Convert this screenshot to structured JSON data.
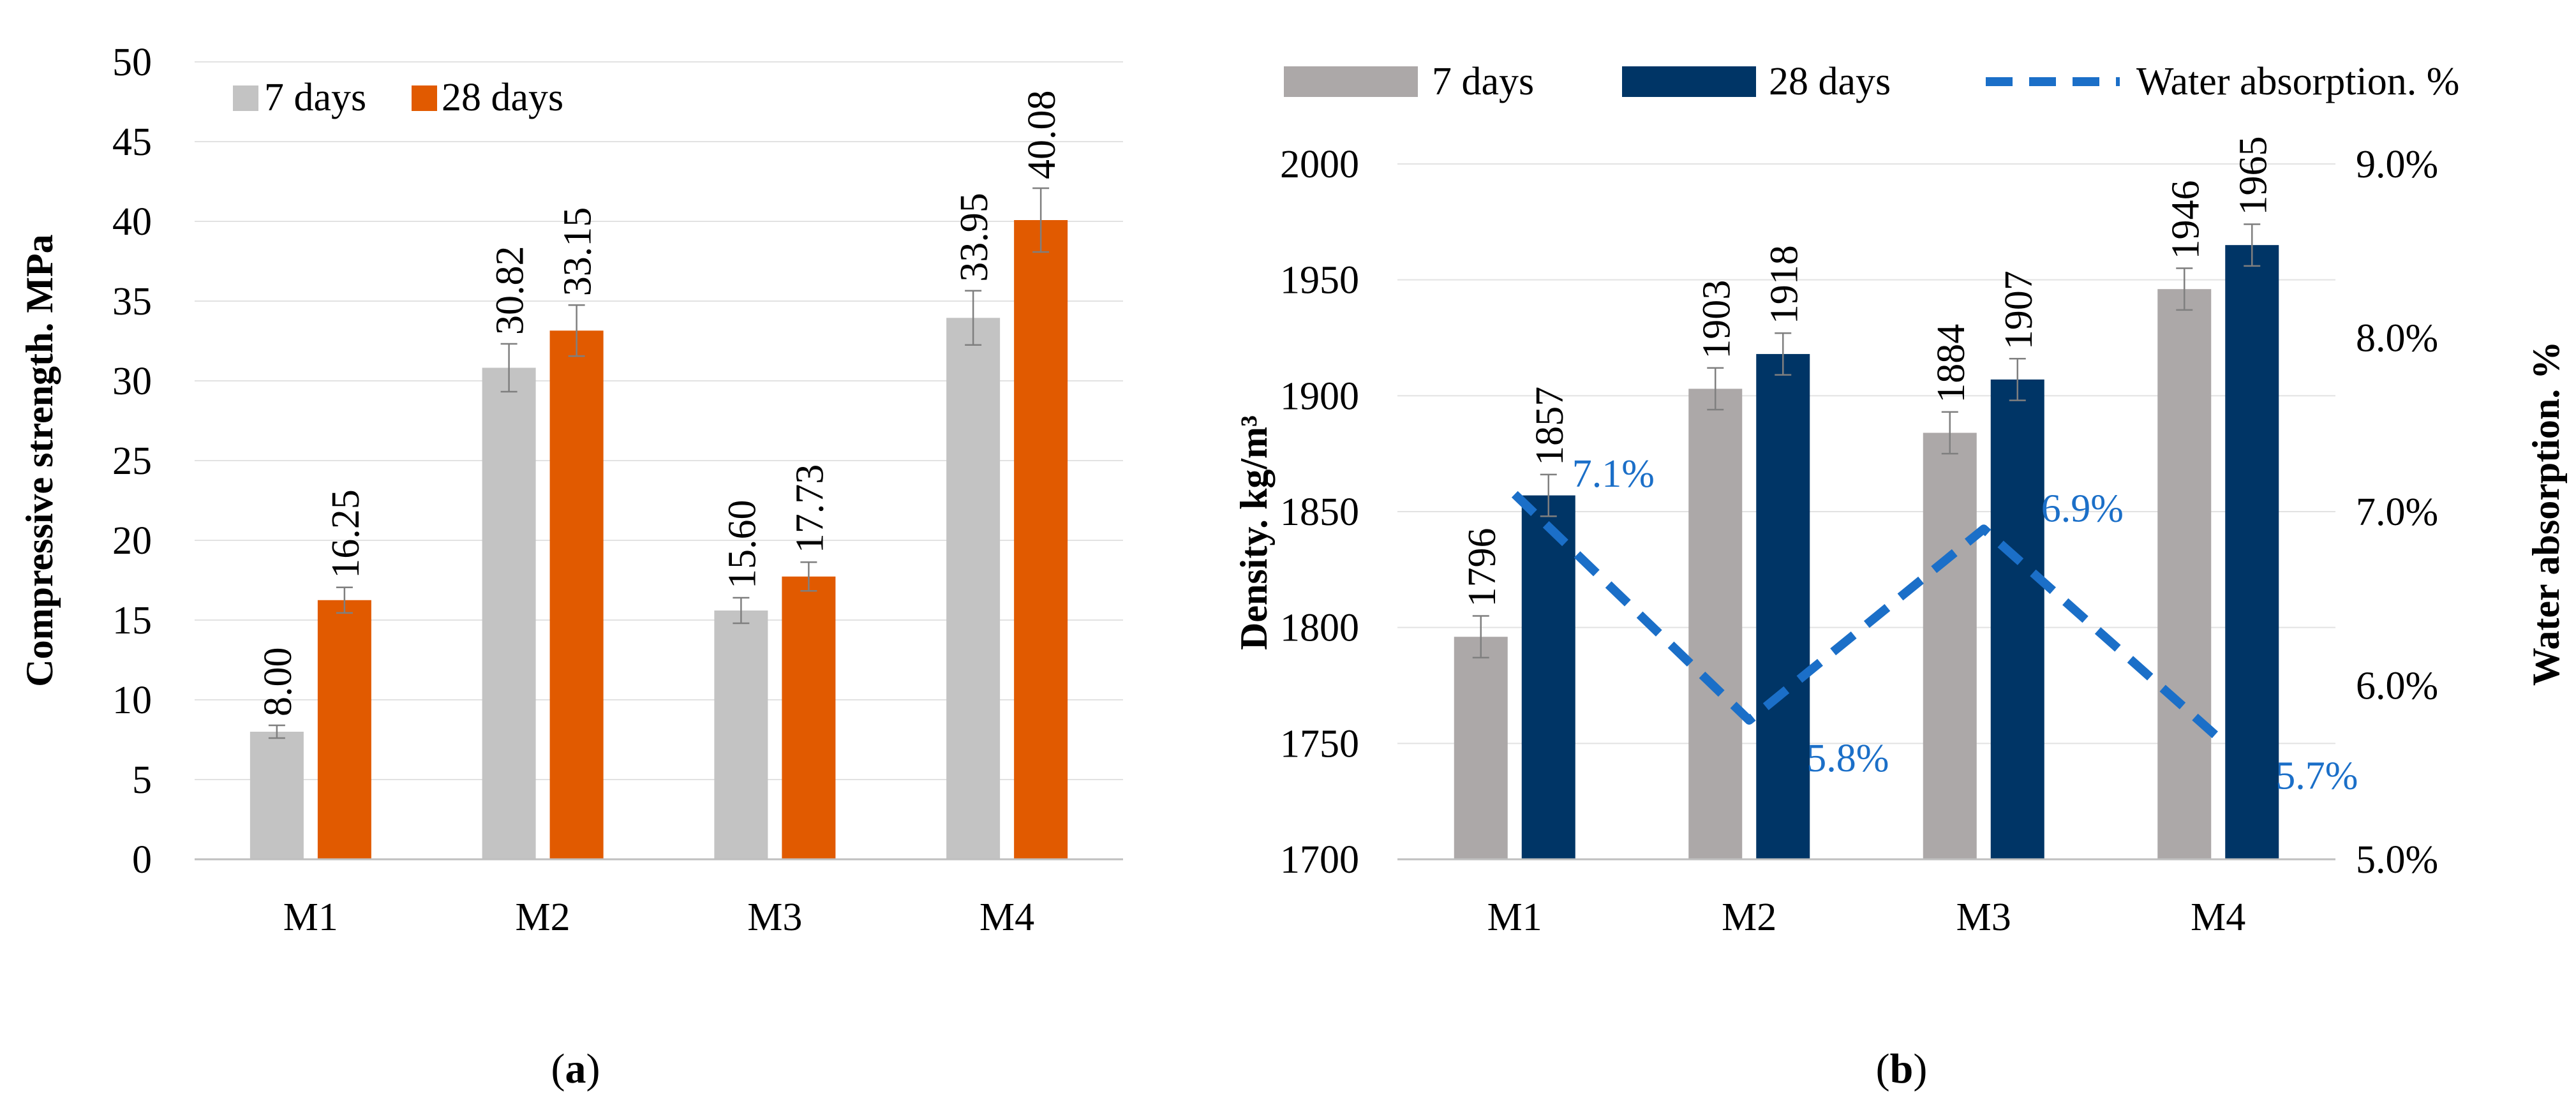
{
  "colors": {
    "a_7days": "#C3C3C3",
    "a_28days": "#E15A00",
    "b_7days": "#ACA8A8",
    "b_28days": "#003566",
    "water_line": "#1B6FC8",
    "grid": "#E2E2E2",
    "error_bar": "#7F7F7F"
  },
  "chart_data": [
    {
      "id": "a",
      "type": "bar",
      "panel_label": "a",
      "categories": [
        "M1",
        "M2",
        "M3",
        "M4"
      ],
      "series": [
        {
          "name": "7 days",
          "values": [
            8.0,
            30.82,
            15.6,
            33.95
          ],
          "labels": [
            "8.00",
            "30.82",
            "15.60",
            "33.95"
          ],
          "errors": [
            0.4,
            1.5,
            0.8,
            1.7
          ]
        },
        {
          "name": "28 days",
          "values": [
            16.25,
            33.15,
            17.73,
            40.08
          ],
          "labels": [
            "16.25",
            "33.15",
            "17.73",
            "40.08"
          ],
          "errors": [
            0.8,
            1.6,
            0.9,
            2.0
          ]
        }
      ],
      "ylabel": "Compressive strength. MPa",
      "xlabel": "",
      "ylim": [
        0,
        50
      ],
      "yticks": [
        "0",
        "5",
        "10",
        "15",
        "20",
        "25",
        "30",
        "35",
        "40",
        "45",
        "50"
      ],
      "legend_position": "top-left",
      "grid": true
    },
    {
      "id": "b",
      "type": "bar",
      "panel_label": "b",
      "categories": [
        "M1",
        "M2",
        "M3",
        "M4"
      ],
      "series": [
        {
          "name": "7 days",
          "values": [
            1796,
            1903,
            1884,
            1946
          ],
          "labels": [
            "1796",
            "1903",
            "1884",
            "1946"
          ],
          "errors": [
            9,
            9,
            9,
            9
          ]
        },
        {
          "name": "28 days",
          "values": [
            1857,
            1918,
            1907,
            1965
          ],
          "labels": [
            "1857",
            "1918",
            "1907",
            "1965"
          ],
          "errors": [
            9,
            9,
            9,
            9
          ]
        }
      ],
      "line_series": {
        "name": "Water absorption. %",
        "values": [
          7.1,
          5.8,
          6.9,
          5.7
        ],
        "labels": [
          "7.1%",
          "5.8%",
          "6.9%",
          "5.7%"
        ],
        "axis": "secondary"
      },
      "ylabel": "Density. kg/m³",
      "y2label": "Water absorption. %",
      "xlabel": "",
      "ylim": [
        1700,
        2000
      ],
      "y2lim": [
        5.0,
        9.0
      ],
      "yticks": [
        "1700",
        "1750",
        "1800",
        "1850",
        "1900",
        "1950",
        "2000"
      ],
      "y2ticks": [
        "5.0%",
        "6.0%",
        "7.0%",
        "8.0%",
        "9.0%"
      ],
      "legend_position": "top",
      "grid": true
    }
  ]
}
